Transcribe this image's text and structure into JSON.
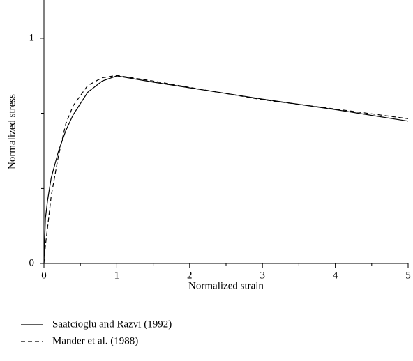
{
  "chart_data": {
    "type": "line",
    "x_label": "Normalized strain",
    "y_label": "Normalized stress",
    "x": [
      0,
      0.02,
      0.05,
      0.1,
      0.2,
      0.3,
      0.4,
      0.6,
      0.8,
      1,
      1.5,
      2,
      3,
      4,
      5
    ],
    "series": [
      {
        "name": "Saatcioglu and Razvi (1992)",
        "color": "#000000",
        "dash": "solid",
        "values": [
          0,
          0.2,
          0.28,
          0.38,
          0.5,
          0.59,
          0.66,
          0.76,
          0.81,
          0.833,
          0.805,
          0.78,
          0.73,
          0.683,
          0.632
        ]
      },
      {
        "name": "Mander et al. (1988)",
        "color": "#000000",
        "dash": "dashed",
        "values": [
          0,
          0.08,
          0.16,
          0.3,
          0.48,
          0.62,
          0.7,
          0.79,
          0.825,
          0.835,
          0.81,
          0.782,
          0.727,
          0.686,
          0.643
        ]
      }
    ],
    "xlim": [
      0,
      5
    ],
    "xticks": [
      0,
      1,
      2,
      3,
      4,
      5
    ],
    "xminor": [
      0.5,
      1.5,
      2.5,
      3.5,
      4.5
    ],
    "ylim": [
      0,
      1.17
    ],
    "yticks": [
      0,
      1
    ],
    "yminor": [
      0.333,
      0.667
    ],
    "grid": false
  }
}
